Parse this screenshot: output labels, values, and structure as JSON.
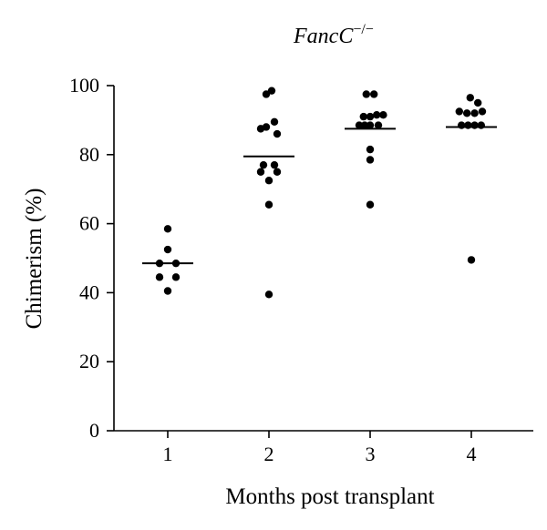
{
  "chart_data": {
    "type": "scatter",
    "title_main": "FancC",
    "title_sup": "−/−",
    "xlabel": "Months post transplant",
    "ylabel": "Chimerism (%)",
    "ylim": [
      0,
      100
    ],
    "yticks": [
      "0",
      "20",
      "40",
      "60",
      "80",
      "100"
    ],
    "categories": [
      "1",
      "2",
      "3",
      "4"
    ],
    "grid": false,
    "legend": "none",
    "groups": [
      {
        "category": "1",
        "mean": 48.5,
        "points": [
          {
            "x": 0.0,
            "y": 58.5
          },
          {
            "x": 0.0,
            "y": 52.5
          },
          {
            "x": -0.15,
            "y": 48.5
          },
          {
            "x": 0.15,
            "y": 48.5
          },
          {
            "x": -0.15,
            "y": 44.5
          },
          {
            "x": 0.15,
            "y": 44.5
          },
          {
            "x": 0.0,
            "y": 40.5
          }
        ]
      },
      {
        "category": "2",
        "mean": 79.5,
        "points": [
          {
            "x": 0.05,
            "y": 98.5
          },
          {
            "x": -0.05,
            "y": 97.5
          },
          {
            "x": 0.1,
            "y": 89.5
          },
          {
            "x": -0.05,
            "y": 88.0
          },
          {
            "x": 0.15,
            "y": 86.0
          },
          {
            "x": -0.15,
            "y": 87.5
          },
          {
            "x": -0.1,
            "y": 77.0
          },
          {
            "x": 0.1,
            "y": 77.0
          },
          {
            "x": -0.15,
            "y": 75.0
          },
          {
            "x": 0.15,
            "y": 75.0
          },
          {
            "x": 0.0,
            "y": 72.5
          },
          {
            "x": 0.0,
            "y": 65.5
          },
          {
            "x": 0.0,
            "y": 39.5
          }
        ]
      },
      {
        "category": "3",
        "mean": 87.5,
        "points": [
          {
            "x": -0.07,
            "y": 97.5
          },
          {
            "x": 0.07,
            "y": 97.5
          },
          {
            "x": -0.12,
            "y": 91.0
          },
          {
            "x": 0.0,
            "y": 91.0
          },
          {
            "x": 0.12,
            "y": 91.5
          },
          {
            "x": 0.24,
            "y": 91.5
          },
          {
            "x": -0.2,
            "y": 88.5
          },
          {
            "x": 0.0,
            "y": 88.5
          },
          {
            "x": 0.15,
            "y": 88.5
          },
          {
            "x": -0.1,
            "y": 88.5
          },
          {
            "x": 0.0,
            "y": 81.5
          },
          {
            "x": 0.0,
            "y": 78.5
          },
          {
            "x": 0.0,
            "y": 65.5
          }
        ]
      },
      {
        "category": "4",
        "mean": 88.0,
        "points": [
          {
            "x": -0.02,
            "y": 96.5
          },
          {
            "x": 0.12,
            "y": 95.0
          },
          {
            "x": -0.22,
            "y": 92.5
          },
          {
            "x": -0.08,
            "y": 92.0
          },
          {
            "x": 0.06,
            "y": 92.0
          },
          {
            "x": 0.2,
            "y": 92.5
          },
          {
            "x": -0.18,
            "y": 88.5
          },
          {
            "x": -0.06,
            "y": 88.5
          },
          {
            "x": 0.06,
            "y": 88.5
          },
          {
            "x": 0.18,
            "y": 88.5
          },
          {
            "x": 0.0,
            "y": 49.5
          }
        ]
      }
    ]
  }
}
